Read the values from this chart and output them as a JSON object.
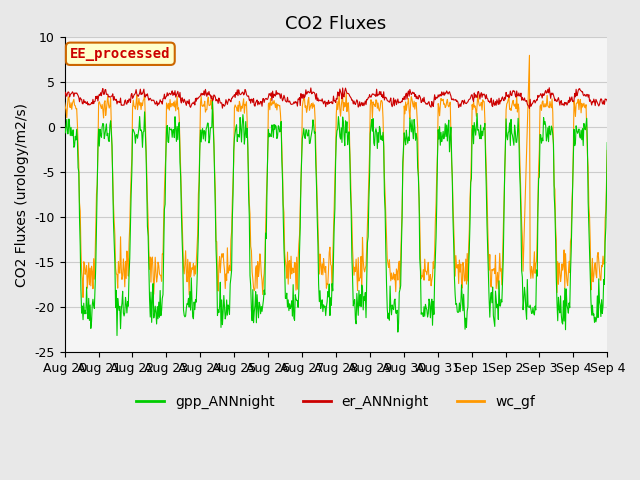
{
  "title": "CO2 Fluxes",
  "ylabel": "CO2 Fluxes (urology/m2/s)",
  "ylim": [
    -25,
    10
  ],
  "yticks": [
    -25,
    -20,
    -15,
    -10,
    -5,
    0,
    5,
    10
  ],
  "xlabel": "",
  "bg_color": "#e8e8e8",
  "plot_bg_color": "#f5f5f5",
  "grid_color": "#cccccc",
  "annotation_text": "EE_processed",
  "annotation_bg": "#ffffcc",
  "annotation_border": "#cc6600",
  "annotation_text_color": "#cc0000",
  "legend_entries": [
    "gpp_ANNnight",
    "er_ANNnight",
    "wc_gf"
  ],
  "line_colors": [
    "#00cc00",
    "#cc0000",
    "#ff9900"
  ],
  "n_days": 16,
  "n_points_per_day": 48,
  "date_labels": [
    "Aug 20",
    "Aug 21",
    "Aug 22",
    "Aug 23",
    "Aug 24",
    "Aug 25",
    "Aug 26",
    "Aug 27",
    "Aug 28",
    "Aug 29",
    "Aug 30",
    "Aug 31",
    "Sep 1",
    "Sep 2",
    "Sep 3",
    "Sep 4",
    "Sep 4"
  ],
  "title_fontsize": 13,
  "label_fontsize": 10,
  "tick_fontsize": 9,
  "legend_fontsize": 10
}
